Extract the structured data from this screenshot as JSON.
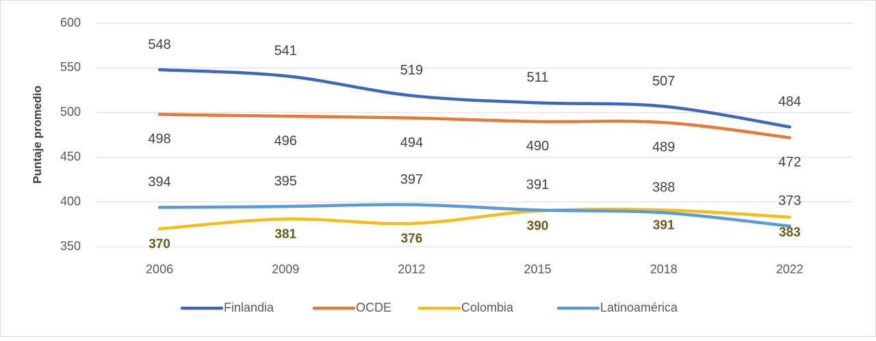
{
  "chart_data": {
    "type": "line",
    "title": "",
    "xlabel": "",
    "ylabel": "Puntaje promedio",
    "ylim": [
      350,
      600
    ],
    "yticks": [
      350,
      400,
      450,
      500,
      550,
      600
    ],
    "grid": true,
    "legend_position": "bottom",
    "categories": [
      "2006",
      "2009",
      "2012",
      "2015",
      "2018",
      "2022"
    ],
    "series": [
      {
        "name": "Finlandia",
        "color": "#3F67B8",
        "values": [
          548,
          541,
          519,
          511,
          507,
          484
        ],
        "label_position": "above",
        "label_color": "#404040"
      },
      {
        "name": "OCDE",
        "color": "#E47A3A",
        "values": [
          498,
          496,
          494,
          490,
          489,
          472
        ],
        "label_position": "below",
        "label_color": "#404040"
      },
      {
        "name": "Colombia",
        "color": "#F2BE1E",
        "values": [
          370,
          381,
          376,
          390,
          391,
          383
        ],
        "label_position": "below",
        "label_color": "#6B5A1E"
      },
      {
        "name": "Latinoamérica",
        "color": "#5B9BD5",
        "values": [
          394,
          395,
          397,
          391,
          388,
          373
        ],
        "label_position": "above",
        "label_color": "#404040"
      }
    ]
  }
}
